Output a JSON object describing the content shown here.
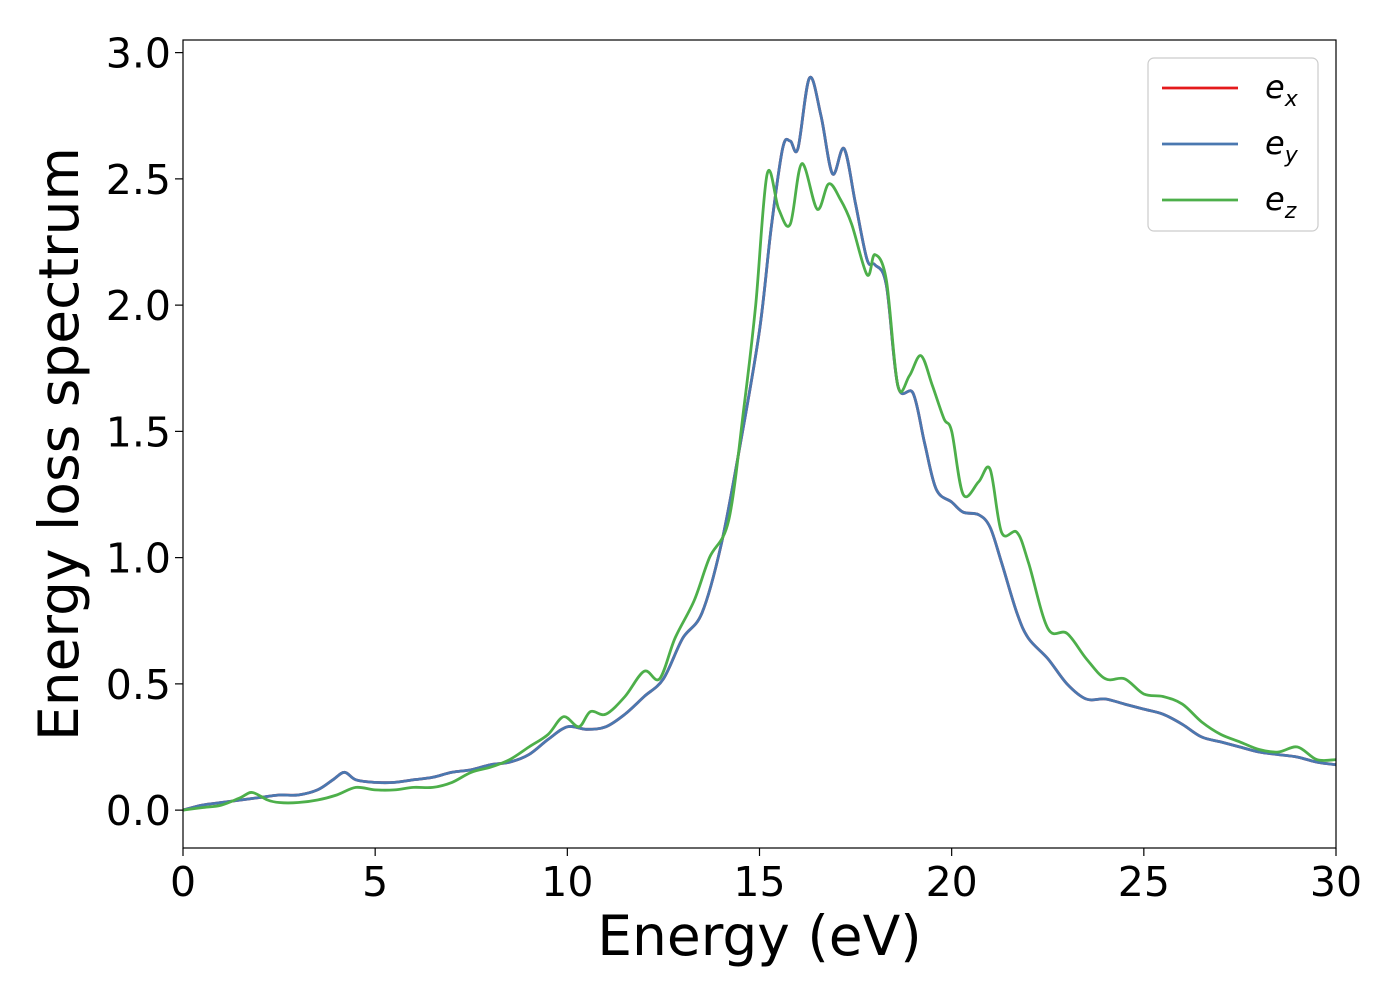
{
  "chart_data": {
    "type": "line",
    "xlabel": "Energy (eV)",
    "ylabel": "Energy loss spectrum",
    "xlim": [
      0,
      30
    ],
    "ylim": [
      -0.15,
      3.05
    ],
    "xticks": [
      "0",
      "5",
      "10",
      "15",
      "20",
      "25",
      "30"
    ],
    "yticks": [
      "0.0",
      "0.5",
      "1.0",
      "1.5",
      "2.0",
      "2.5",
      "3.0"
    ],
    "grid": false,
    "legend_position": "top-right",
    "series": [
      {
        "name": "e",
        "subscript": "x",
        "color": "#e41a1c",
        "x": [
          0,
          0.5,
          1,
          1.5,
          2,
          2.5,
          3,
          3.5,
          3.9,
          4.2,
          4.5,
          5,
          5.5,
          6,
          6.5,
          7,
          7.5,
          8,
          8.5,
          9,
          9.5,
          10,
          10.5,
          11,
          11.5,
          12,
          12.5,
          13,
          13.5,
          14,
          14.5,
          15,
          15.3,
          15.6,
          15.8,
          16,
          16.3,
          16.6,
          16.9,
          17.2,
          17.5,
          17.8,
          18,
          18.3,
          18.6,
          19,
          19.3,
          19.6,
          20,
          20.3,
          20.7,
          21,
          21.3,
          21.7,
          22,
          22.5,
          23,
          23.5,
          24,
          24.5,
          25,
          25.5,
          26,
          26.5,
          27,
          27.5,
          28,
          28.5,
          29,
          29.5,
          30
        ],
        "y": [
          0,
          0.02,
          0.03,
          0.04,
          0.05,
          0.06,
          0.06,
          0.08,
          0.12,
          0.15,
          0.12,
          0.11,
          0.11,
          0.12,
          0.13,
          0.15,
          0.16,
          0.18,
          0.19,
          0.22,
          0.28,
          0.33,
          0.32,
          0.33,
          0.38,
          0.45,
          0.52,
          0.68,
          0.78,
          1.05,
          1.45,
          1.9,
          2.3,
          2.62,
          2.65,
          2.62,
          2.9,
          2.75,
          2.52,
          2.62,
          2.4,
          2.18,
          2.16,
          2.08,
          1.68,
          1.65,
          1.45,
          1.27,
          1.22,
          1.18,
          1.17,
          1.12,
          0.98,
          0.78,
          0.68,
          0.6,
          0.5,
          0.44,
          0.44,
          0.42,
          0.4,
          0.38,
          0.34,
          0.29,
          0.27,
          0.25,
          0.23,
          0.22,
          0.21,
          0.19,
          0.18
        ]
      },
      {
        "name": "e",
        "subscript": "y",
        "color": "#4a78b0",
        "x": [
          0,
          0.5,
          1,
          1.5,
          2,
          2.5,
          3,
          3.5,
          3.9,
          4.2,
          4.5,
          5,
          5.5,
          6,
          6.5,
          7,
          7.5,
          8,
          8.5,
          9,
          9.5,
          10,
          10.5,
          11,
          11.5,
          12,
          12.5,
          13,
          13.5,
          14,
          14.5,
          15,
          15.3,
          15.6,
          15.8,
          16,
          16.3,
          16.6,
          16.9,
          17.2,
          17.5,
          17.8,
          18,
          18.3,
          18.6,
          19,
          19.3,
          19.6,
          20,
          20.3,
          20.7,
          21,
          21.3,
          21.7,
          22,
          22.5,
          23,
          23.5,
          24,
          24.5,
          25,
          25.5,
          26,
          26.5,
          27,
          27.5,
          28,
          28.5,
          29,
          29.5,
          30
        ],
        "y": [
          0,
          0.02,
          0.03,
          0.04,
          0.05,
          0.06,
          0.06,
          0.08,
          0.12,
          0.15,
          0.12,
          0.11,
          0.11,
          0.12,
          0.13,
          0.15,
          0.16,
          0.18,
          0.19,
          0.22,
          0.28,
          0.33,
          0.32,
          0.33,
          0.38,
          0.45,
          0.52,
          0.68,
          0.78,
          1.05,
          1.45,
          1.9,
          2.3,
          2.62,
          2.65,
          2.62,
          2.9,
          2.75,
          2.52,
          2.62,
          2.4,
          2.18,
          2.16,
          2.08,
          1.68,
          1.65,
          1.45,
          1.27,
          1.22,
          1.18,
          1.17,
          1.12,
          0.98,
          0.78,
          0.68,
          0.6,
          0.5,
          0.44,
          0.44,
          0.42,
          0.4,
          0.38,
          0.34,
          0.29,
          0.27,
          0.25,
          0.23,
          0.22,
          0.21,
          0.19,
          0.18
        ]
      },
      {
        "name": "e",
        "subscript": "z",
        "color": "#4daf4a",
        "x": [
          0,
          0.5,
          1,
          1.5,
          1.8,
          2.2,
          2.5,
          3,
          3.5,
          4,
          4.5,
          5,
          5.5,
          6,
          6.5,
          7,
          7.5,
          8,
          8.5,
          9,
          9.5,
          9.9,
          10.3,
          10.6,
          11,
          11.5,
          12,
          12.4,
          12.8,
          13.3,
          13.7,
          14.2,
          14.6,
          14.9,
          15.2,
          15.5,
          15.8,
          16.1,
          16.5,
          16.8,
          17.1,
          17.4,
          17.8,
          18,
          18.3,
          18.6,
          18.9,
          19.2,
          19.5,
          19.8,
          20,
          20.3,
          20.7,
          21,
          21.3,
          21.7,
          22,
          22.5,
          23,
          23.5,
          24,
          24.5,
          25,
          25.5,
          26,
          26.5,
          27,
          27.5,
          28,
          28.5,
          29,
          29.5,
          30
        ],
        "y": [
          0,
          0.01,
          0.02,
          0.05,
          0.07,
          0.04,
          0.03,
          0.03,
          0.04,
          0.06,
          0.09,
          0.08,
          0.08,
          0.09,
          0.09,
          0.11,
          0.15,
          0.17,
          0.2,
          0.25,
          0.3,
          0.37,
          0.33,
          0.39,
          0.38,
          0.45,
          0.55,
          0.52,
          0.68,
          0.83,
          1.0,
          1.15,
          1.6,
          2.0,
          2.52,
          2.38,
          2.32,
          2.56,
          2.38,
          2.48,
          2.42,
          2.32,
          2.12,
          2.2,
          2.1,
          1.68,
          1.72,
          1.8,
          1.68,
          1.55,
          1.5,
          1.25,
          1.3,
          1.35,
          1.1,
          1.1,
          0.98,
          0.72,
          0.7,
          0.6,
          0.52,
          0.52,
          0.46,
          0.45,
          0.42,
          0.35,
          0.3,
          0.27,
          0.24,
          0.23,
          0.25,
          0.2,
          0.2
        ]
      }
    ]
  }
}
